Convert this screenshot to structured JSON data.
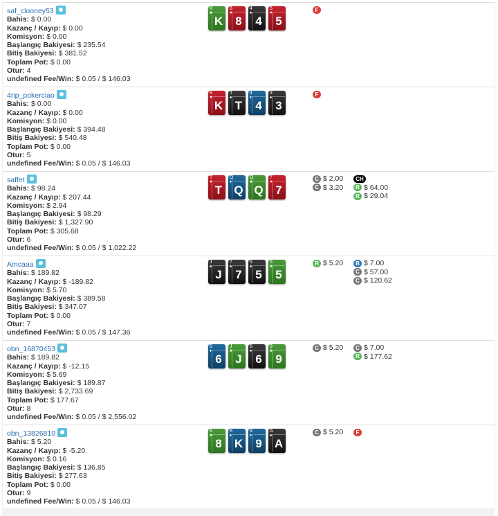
{
  "labels": {
    "bet": "Bahis:",
    "winloss": "Kazanç / Kayıp:",
    "commission": "Komisyon:",
    "start": "Başlangıç Bakiyesi:",
    "end": "Bitiş Bakiyesi:",
    "pot": "Toplam Pot:",
    "seat": "Otur:",
    "fee": "undefined Fee/Win:"
  },
  "suit_colors": {
    "club": "#2e7420",
    "heart": "#8a111a",
    "spade": "#111111",
    "diamond": "#0f3e62"
  },
  "players": [
    {
      "name": "saf_clooney53",
      "bet": "$ 0.00",
      "winloss": "$ 0.00",
      "commission": "$ 0.00",
      "start": "$ 235.54",
      "end": "$ 381.52",
      "pot": "$ 0.00",
      "seat": "4",
      "fee": "$ 0.05 / $ 146.03",
      "cards": [
        {
          "rank": "K",
          "suit": "club",
          "suit_glyph": "♣"
        },
        {
          "rank": "8",
          "suit": "heart",
          "suit_glyph": "♥"
        },
        {
          "rank": "4",
          "suit": "spade",
          "suit_glyph": "♠"
        },
        {
          "rank": "5",
          "suit": "heart",
          "suit_glyph": "♥"
        }
      ],
      "actions1": [
        {
          "code": "F",
          "amount": ""
        }
      ],
      "actions2": []
    },
    {
      "name": "4np_pokerciao",
      "bet": "$ 0.00",
      "winloss": "$ 0.00",
      "commission": "$ 0.00",
      "start": "$ 394.48",
      "end": "$ 540.48",
      "pot": "$ 0.00",
      "seat": "5",
      "fee": "$ 0.05 / $ 146.03",
      "cards": [
        {
          "rank": "K",
          "suit": "heart",
          "suit_glyph": "♥"
        },
        {
          "rank": "T",
          "suit": "spade",
          "suit_glyph": "♠"
        },
        {
          "rank": "4",
          "suit": "diamond",
          "suit_glyph": "♦"
        },
        {
          "rank": "3",
          "suit": "spade",
          "suit_glyph": "♠"
        }
      ],
      "actions1": [
        {
          "code": "F",
          "amount": ""
        }
      ],
      "actions2": []
    },
    {
      "name": "saffet",
      "bet": "$ 98.24",
      "winloss": "$ 207.44",
      "commission": "$ 2.94",
      "start": "$ 98.29",
      "end": "$ 1,327.90",
      "pot": "$ 305.68",
      "seat": "6",
      "fee": "$ 0.05 / $ 1,022.22",
      "cards": [
        {
          "rank": "T",
          "suit": "heart",
          "suit_glyph": "♥"
        },
        {
          "rank": "Q",
          "suit": "diamond",
          "suit_glyph": "♦"
        },
        {
          "rank": "Q",
          "suit": "club",
          "suit_glyph": "♣"
        },
        {
          "rank": "7",
          "suit": "heart",
          "suit_glyph": "♥"
        }
      ],
      "actions1": [
        {
          "code": "C",
          "amount": "$ 2.00"
        },
        {
          "code": "C",
          "amount": "$ 3.20"
        }
      ],
      "actions2": [
        {
          "code": "CH",
          "amount": ""
        },
        {
          "code": "R",
          "amount": "$ 64.00"
        },
        {
          "code": "R",
          "amount": "$ 29.04"
        }
      ]
    },
    {
      "name": "Amcaaa",
      "bet": "$ 189.82",
      "winloss": "$ -189.82",
      "commission": "$ 5.70",
      "start": "$ 389.58",
      "end": "$ 347.07",
      "pot": "$ 0.00",
      "seat": "7",
      "fee": "$ 0.05 / $ 147.36",
      "cards": [
        {
          "rank": "J",
          "suit": "spade",
          "suit_glyph": "♠"
        },
        {
          "rank": "7",
          "suit": "spade",
          "suit_glyph": "♠"
        },
        {
          "rank": "5",
          "suit": "spade",
          "suit_glyph": "♠"
        },
        {
          "rank": "5",
          "suit": "club",
          "suit_glyph": "♣"
        }
      ],
      "actions1": [
        {
          "code": "R",
          "amount": "$ 5.20"
        }
      ],
      "actions2": [
        {
          "code": "B",
          "amount": "$ 7.00"
        },
        {
          "code": "C",
          "amount": "$ 57.00"
        },
        {
          "code": "C",
          "amount": "$ 120.62"
        }
      ]
    },
    {
      "name": "obn_16870453",
      "bet": "$ 189.82",
      "winloss": "$ -12.15",
      "commission": "$ 5.69",
      "start": "$ 189.87",
      "end": "$ 2,733.69",
      "pot": "$ 177.67",
      "seat": "8",
      "fee": "$ 0.05 / $ 2,556.02",
      "cards": [
        {
          "rank": "6",
          "suit": "diamond",
          "suit_glyph": "♦"
        },
        {
          "rank": "J",
          "suit": "club",
          "suit_glyph": "♣"
        },
        {
          "rank": "6",
          "suit": "spade",
          "suit_glyph": "♠"
        },
        {
          "rank": "9",
          "suit": "club",
          "suit_glyph": "♣"
        }
      ],
      "actions1": [
        {
          "code": "C",
          "amount": "$ 5.20"
        }
      ],
      "actions2": [
        {
          "code": "C",
          "amount": "$ 7.00"
        },
        {
          "code": "R",
          "amount": "$ 177.62"
        }
      ]
    },
    {
      "name": "obn_13826810",
      "bet": "$ 5.20",
      "winloss": "$ -5.20",
      "commission": "$ 0.16",
      "start": "$ 136.85",
      "end": "$ 277.63",
      "pot": "$ 0.00",
      "seat": "9",
      "fee": "$ 0.05 / $ 146.03",
      "cards": [
        {
          "rank": "8",
          "suit": "club",
          "suit_glyph": "♣"
        },
        {
          "rank": "K",
          "suit": "diamond",
          "suit_glyph": "♦"
        },
        {
          "rank": "9",
          "suit": "diamond",
          "suit_glyph": "♦"
        },
        {
          "rank": "A",
          "suit": "spade",
          "suit_glyph": "♠"
        }
      ],
      "actions1": [
        {
          "code": "C",
          "amount": "$ 5.20"
        }
      ],
      "actions2": [
        {
          "code": "F",
          "amount": ""
        }
      ]
    }
  ]
}
